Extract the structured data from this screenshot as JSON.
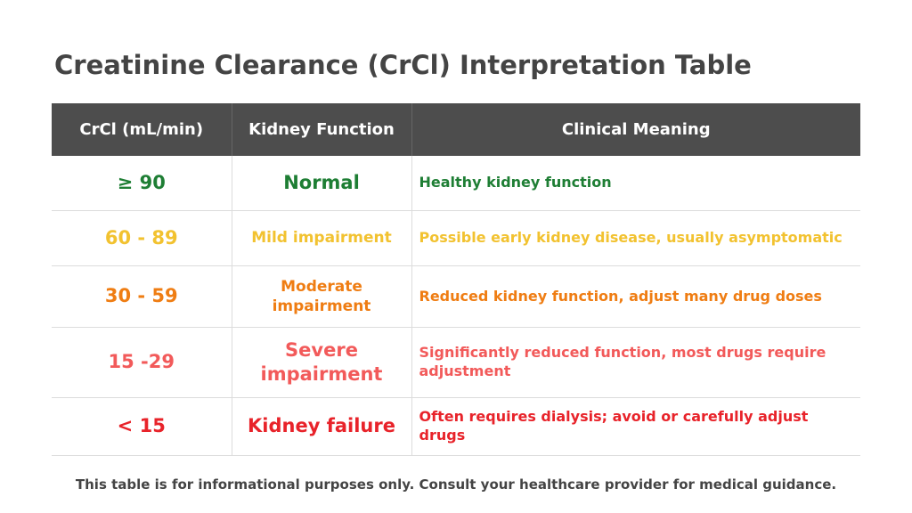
{
  "title": "Creatinine Clearance (CrCl) Interpretation Table",
  "table": {
    "headers": [
      "CrCl (mL/min)",
      "Kidney Function",
      "Clinical Meaning"
    ],
    "rows": [
      {
        "range": "≥ 90",
        "function": "Normal",
        "meaning": "Healthy kidney function",
        "color": "#1e7e34"
      },
      {
        "range": "60 - 89",
        "function": "Mild impairment",
        "meaning": "Possible early kidney disease, usually asymptomatic",
        "color": "#f2c230"
      },
      {
        "range": "30 - 59",
        "function": "Moderate impairment",
        "meaning": "Reduced kidney function, adjust many drug doses",
        "color": "#ef7d13"
      },
      {
        "range": "15 -29",
        "function": "Severe impairment",
        "meaning": "Significantly reduced function, most drugs require adjustment",
        "color": "#f25a5a"
      },
      {
        "range": "< 15",
        "function": "Kidney failure",
        "meaning": "Often requires dialysis; avoid or carefully adjust drugs",
        "color": "#e8232a"
      }
    ]
  },
  "footnote": "This table is for informational purposes only. Consult your healthcare provider for medical guidance.",
  "colors": {
    "header_bg": "#4d4d4d",
    "title_text": "#444444"
  }
}
